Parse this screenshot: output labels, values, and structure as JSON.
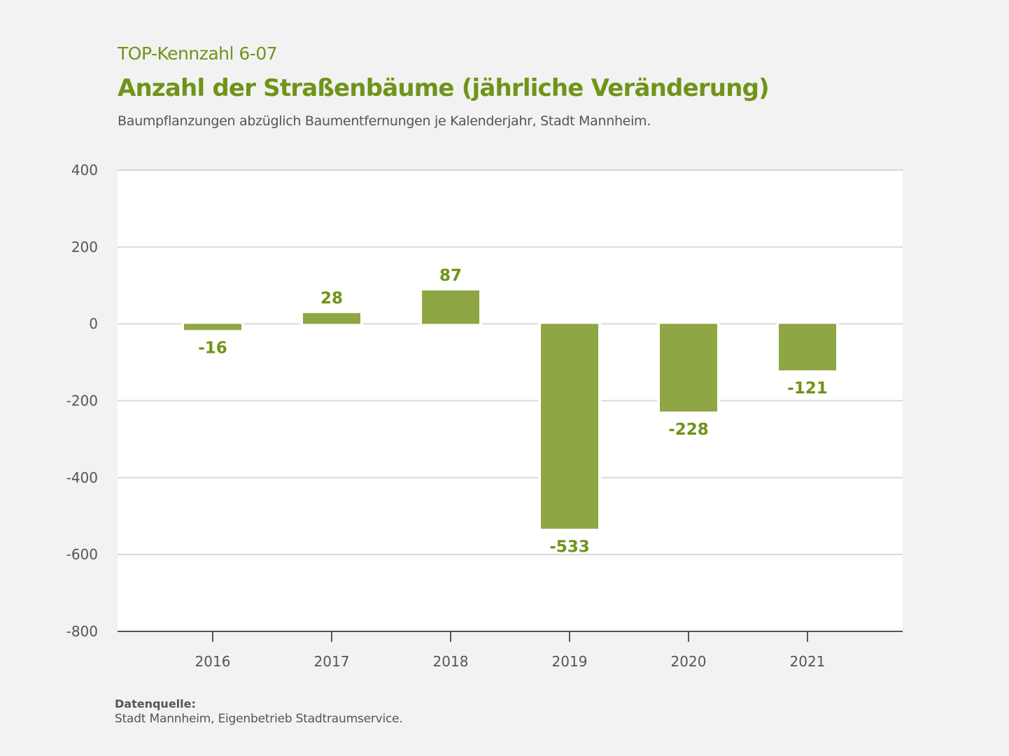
{
  "header": {
    "kicker": "TOP-Kennzahl 6-07",
    "title": "Anzahl der Straßenbäume (jährliche Veränderung)",
    "subtitle": "Baumpflanzungen abzüglich Baumentfernungen je Kalenderjahr, Stadt Mannheim."
  },
  "footer": {
    "source_label": "Datenquelle:",
    "source_text": "Stadt Mannheim, Eigenbetrieb Stadtraumservice."
  },
  "colors": {
    "bar": "#8ea644",
    "accent": "#6f9418",
    "grid": "#d9d9d9",
    "axis": "#555555",
    "plot_bg": "#ffffff",
    "page_bg": "#f2f2f2"
  },
  "chart_data": {
    "type": "bar",
    "title": "Anzahl der Straßenbäume (jährliche Veränderung)",
    "subtitle": "Baumpflanzungen abzüglich Baumentfernungen je Kalenderjahr, Stadt Mannheim.",
    "xlabel": "",
    "ylabel": "",
    "categories": [
      "2016",
      "2017",
      "2018",
      "2019",
      "2020",
      "2021"
    ],
    "values": [
      -16,
      28,
      87,
      -533,
      -228,
      -121
    ],
    "data_labels": [
      "-16",
      "28",
      "87",
      "-533",
      "-228",
      "-121"
    ],
    "ylim": [
      -800,
      400
    ],
    "yticks": [
      400,
      200,
      0,
      -200,
      -400,
      -600,
      -800
    ],
    "ytick_labels": [
      "400",
      "200",
      "0",
      "-200",
      "-400",
      "-600",
      "-800"
    ],
    "grid": true,
    "legend": "none"
  }
}
